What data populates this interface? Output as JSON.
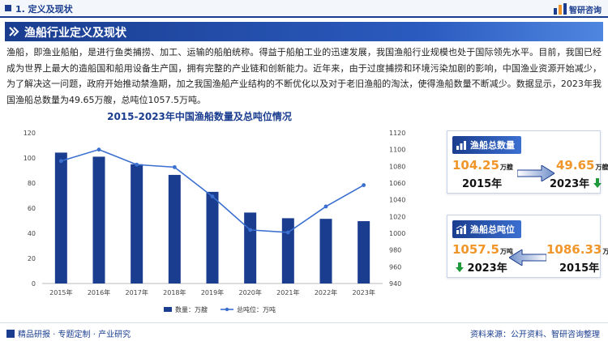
{
  "header": {
    "section": "1. 定义及现状",
    "brand": "智研咨询",
    "title": "渔船行业定义及现状"
  },
  "body": {
    "paragraph": "渔船，即渔业船舶，是进行鱼类捕捞、加工、运输的船舶统称。得益于船舶工业的迅速发展，我国渔船行业规模也处于国际领先水平。目前，我国已经成为世界上最大的造船国和船用设备生产国，拥有完整的产业链和创新能力。近年来，由于过度捕捞和环境污染加剧的影响，中国渔业资源开始减少，为了解决这一问题，政府开始推动禁渔期，加之我国渔船产业结构的不断优化以及对于老旧渔船的淘汰，使得渔船数量不断减少。数据显示，2023年我国渔船总数量为49.65万艘，总吨位1057.5万吨。"
  },
  "chart_data": {
    "type": "bar+line",
    "title": "2015-2023年中国渔船数量及总吨位情况",
    "categories": [
      "2015年",
      "2016年",
      "2017年",
      "2018年",
      "2019年",
      "2020年",
      "2021年",
      "2022年",
      "2023年"
    ],
    "series": [
      {
        "name": "数量：万艘",
        "type": "bar",
        "axis": "left",
        "color": "#1a3d8f",
        "values": [
          104.25,
          101,
          95,
          86.5,
          73,
          56.5,
          52,
          51.5,
          49.65
        ]
      },
      {
        "name": "总吨位：万吨",
        "type": "line",
        "axis": "right",
        "color": "#3b6fd0",
        "values": [
          1086.33,
          1100,
          1082,
          1079,
          1044,
          1004,
          1001,
          1032,
          1057.5
        ]
      }
    ],
    "left_axis": {
      "min": 0,
      "max": 120,
      "ticks": [
        "0",
        "20",
        "40",
        "60",
        "80",
        "100",
        "120"
      ]
    },
    "right_axis": {
      "min": 940,
      "max": 1120,
      "ticks": [
        "940",
        "960",
        "980",
        "1000",
        "1020",
        "1040",
        "1060",
        "1080",
        "1100",
        "1120"
      ]
    },
    "legend_position": "bottom",
    "grid": false
  },
  "card_count": {
    "title": "渔船总数量",
    "from_value": "104.25",
    "from_unit": "万艘",
    "from_year": "2015年",
    "to_value": "49.65",
    "to_unit": "万艘",
    "to_year": "2023年"
  },
  "card_tonnage": {
    "title": "渔船总吨位",
    "left_value": "1057.5",
    "left_unit": "万吨",
    "left_year": "2023年",
    "right_value": "1086.33",
    "right_unit": "万吨",
    "right_year": "2015年"
  },
  "footer": {
    "left": "精品研报 · 专题定制 · 产业研究",
    "right": "资料来源：公开资料、智研咨询整理"
  },
  "colors": {
    "primary": "#1a3d8f",
    "accent": "#f0962a",
    "down": "#1e9a3a",
    "line": "#3b6fd0"
  }
}
